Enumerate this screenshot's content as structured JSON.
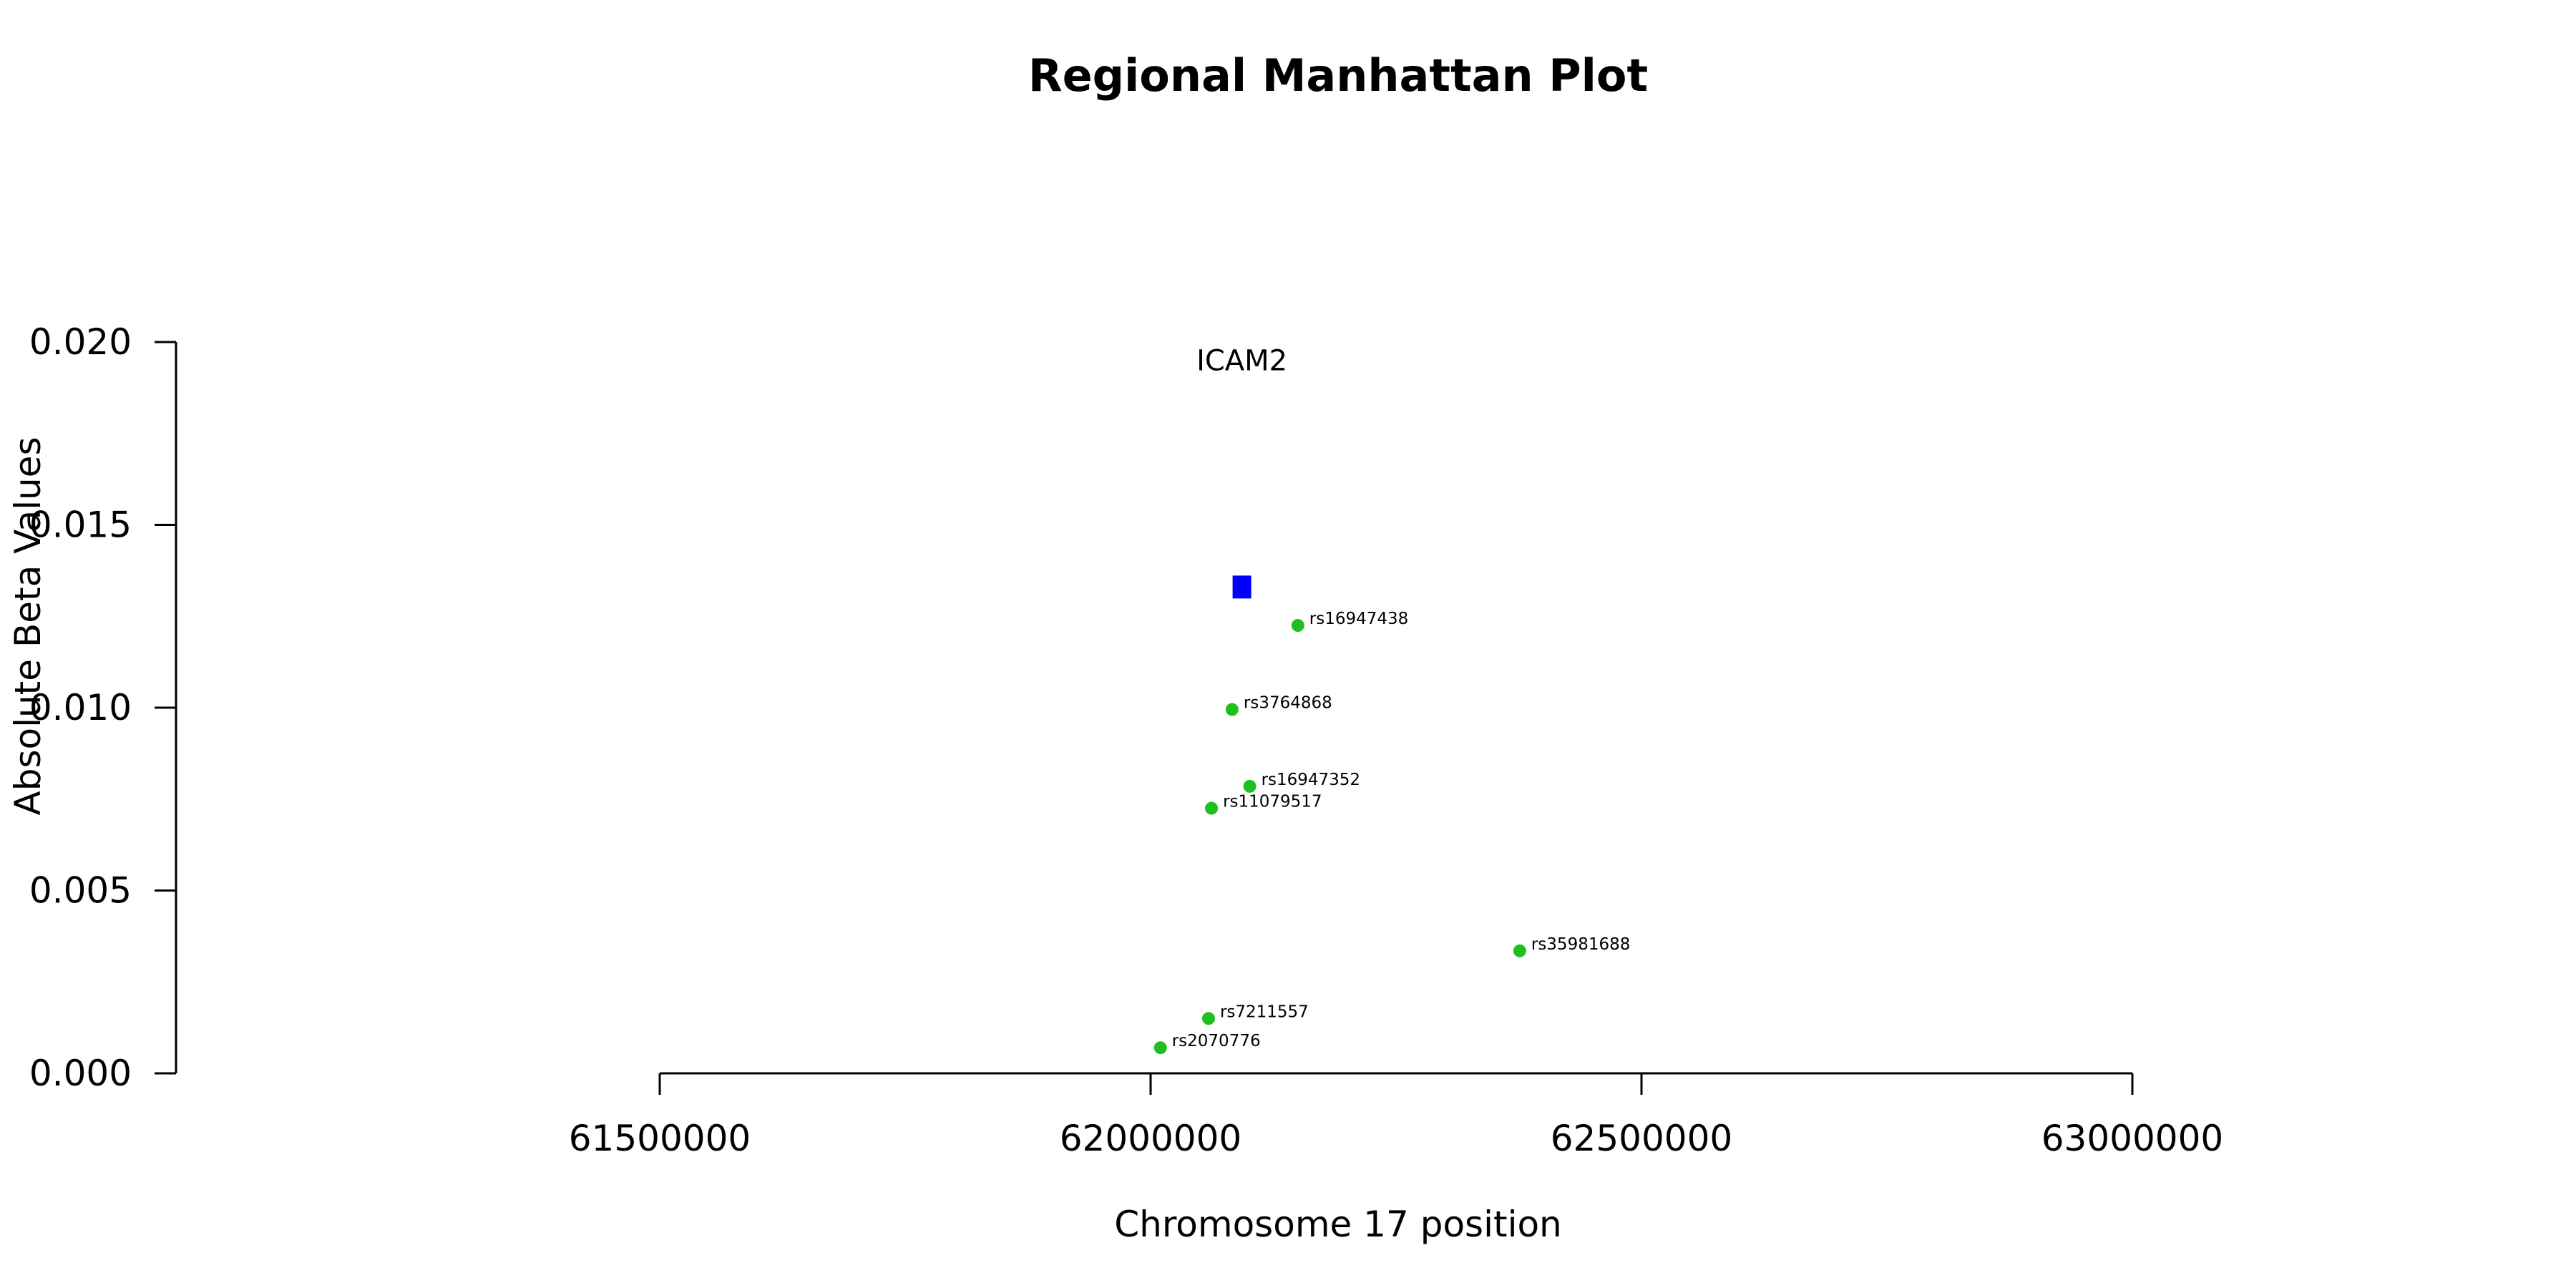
{
  "chart_data": {
    "type": "scatter",
    "title": "Regional Manhattan Plot",
    "xlabel": "Chromosome 17 position",
    "ylabel": "Absolute Beta Values",
    "xlim": [
      61500000,
      63000000
    ],
    "ylim": [
      0,
      0.02
    ],
    "x_ticks": [
      {
        "value": 61500000,
        "label": "61500000"
      },
      {
        "value": 62000000,
        "label": "62000000"
      },
      {
        "value": 62500000,
        "label": "62500000"
      },
      {
        "value": 63000000,
        "label": "63000000"
      }
    ],
    "y_ticks": [
      {
        "value": 0.0,
        "label": "0.000"
      },
      {
        "value": 0.005,
        "label": "0.005"
      },
      {
        "value": 0.01,
        "label": "0.010"
      },
      {
        "value": 0.015,
        "label": "0.015"
      },
      {
        "value": 0.02,
        "label": "0.020"
      }
    ],
    "gene": {
      "label": "ICAM2",
      "x": 62093000,
      "y": 0.0133,
      "label_y": 0.0195,
      "color": "#0000ff"
    },
    "snp_color": "#1fbf1f",
    "points": [
      {
        "label": "rs16947438",
        "x": 62150000,
        "y": 0.01225
      },
      {
        "label": "rs3764868",
        "x": 62083000,
        "y": 0.00995
      },
      {
        "label": "rs16947352",
        "x": 62101000,
        "y": 0.00785
      },
      {
        "label": "rs11079517",
        "x": 62062000,
        "y": 0.00725
      },
      {
        "label": "rs35981688",
        "x": 62376000,
        "y": 0.00335
      },
      {
        "label": "rs7211557",
        "x": 62059000,
        "y": 0.0015
      },
      {
        "label": "rs2070776",
        "x": 62010000,
        "y": 0.0007
      }
    ]
  }
}
